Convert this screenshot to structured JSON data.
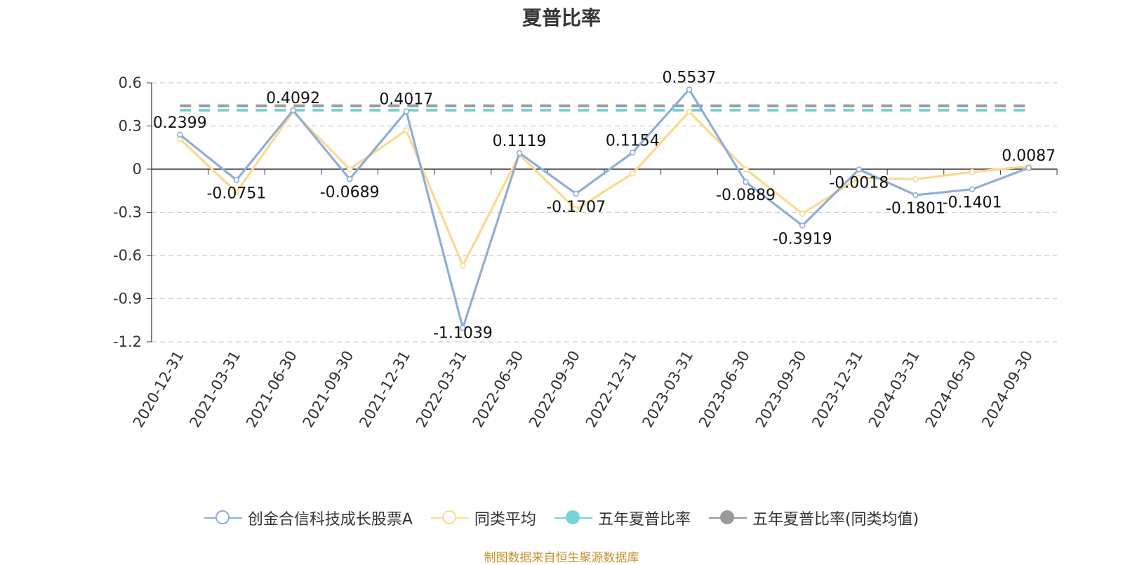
{
  "chart_data": {
    "type": "line",
    "title": "夏普比率",
    "categories": [
      "2020-12-31",
      "2021-03-31",
      "2021-06-30",
      "2021-09-30",
      "2021-12-31",
      "2022-03-31",
      "2022-06-30",
      "2022-09-30",
      "2022-12-31",
      "2023-03-31",
      "2023-06-30",
      "2023-09-30",
      "2023-12-31",
      "2024-03-31",
      "2024-06-30",
      "2024-09-30"
    ],
    "yticks": [
      "0.6",
      "0.3",
      "0",
      "-0.3",
      "-0.6",
      "-0.9",
      "-1.2"
    ],
    "ylim": [
      -1.2,
      0.6
    ],
    "grid": true,
    "legend_position": "bottom",
    "series": [
      {
        "name": "创金合信科技成长股票A",
        "color": "#8eaed8",
        "values": [
          0.2399,
          -0.0751,
          0.4092,
          -0.0689,
          0.4017,
          -1.1039,
          0.1119,
          -0.1707,
          0.1154,
          0.5537,
          -0.0889,
          -0.3919,
          -0.0018,
          -0.1801,
          -0.1401,
          0.0087
        ],
        "labels": [
          "0.2399",
          "-0.0751",
          "0.4092",
          "-0.0689",
          "0.4017",
          "-1.1039",
          "0.1119",
          "-0.1707",
          "0.1154",
          "0.5537",
          "-0.0889",
          "-0.3919",
          "-0.0018",
          "-0.1801",
          "-0.1401",
          "0.0087"
        ]
      },
      {
        "name": "同类平均",
        "color": "#fbd98f",
        "values": [
          0.21,
          -0.16,
          0.4,
          0.0,
          0.27,
          -0.67,
          0.1,
          -0.28,
          -0.03,
          0.4,
          0.0,
          -0.31,
          -0.06,
          -0.07,
          -0.02,
          0.02
        ]
      }
    ],
    "reference_lines": [
      {
        "name": "五年夏普比率",
        "color": "#79d2d4",
        "value": 0.41
      },
      {
        "name": "五年夏普比率(同类均值)",
        "color": "#9a9a9a",
        "value": 0.44
      }
    ]
  },
  "legend": [
    {
      "name": "创金合信科技成长股票A",
      "color": "#8eaed8",
      "filled": false
    },
    {
      "name": "同类平均",
      "color": "#fbd98f",
      "filled": false
    },
    {
      "name": "五年夏普比率",
      "color": "#79d2d4",
      "filled": true
    },
    {
      "name": "五年夏普比率(同类均值)",
      "color": "#9a9a9a",
      "filled": true
    }
  ],
  "source_note": "制图数据来自恒生聚源数据库"
}
